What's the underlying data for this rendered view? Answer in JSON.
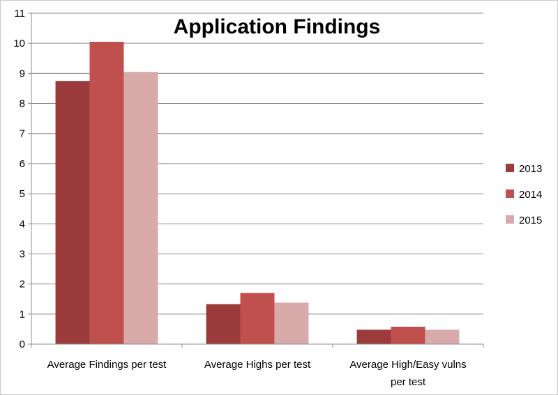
{
  "chart_data": {
    "type": "bar",
    "title": "Application Findings",
    "xlabel": "",
    "ylabel": "",
    "categories": [
      [
        "Average Findings per test"
      ],
      [
        "Average Highs per test"
      ],
      [
        "Average High/Easy vulns",
        "per test"
      ]
    ],
    "series": [
      {
        "name": "2013",
        "values": [
          8.75,
          1.33,
          0.48
        ],
        "color": "#9c3b3b"
      },
      {
        "name": "2014",
        "values": [
          10.05,
          1.7,
          0.58
        ],
        "color": "#c0504d"
      },
      {
        "name": "2015",
        "values": [
          9.05,
          1.38,
          0.48
        ],
        "color": "#d9aaaa"
      }
    ],
    "ylim": [
      0,
      11
    ],
    "yticks": [
      "0",
      "1",
      "2",
      "3",
      "4",
      "5",
      "6",
      "7",
      "8",
      "9",
      "10",
      "11"
    ],
    "grid": true,
    "legend_position": "right"
  }
}
